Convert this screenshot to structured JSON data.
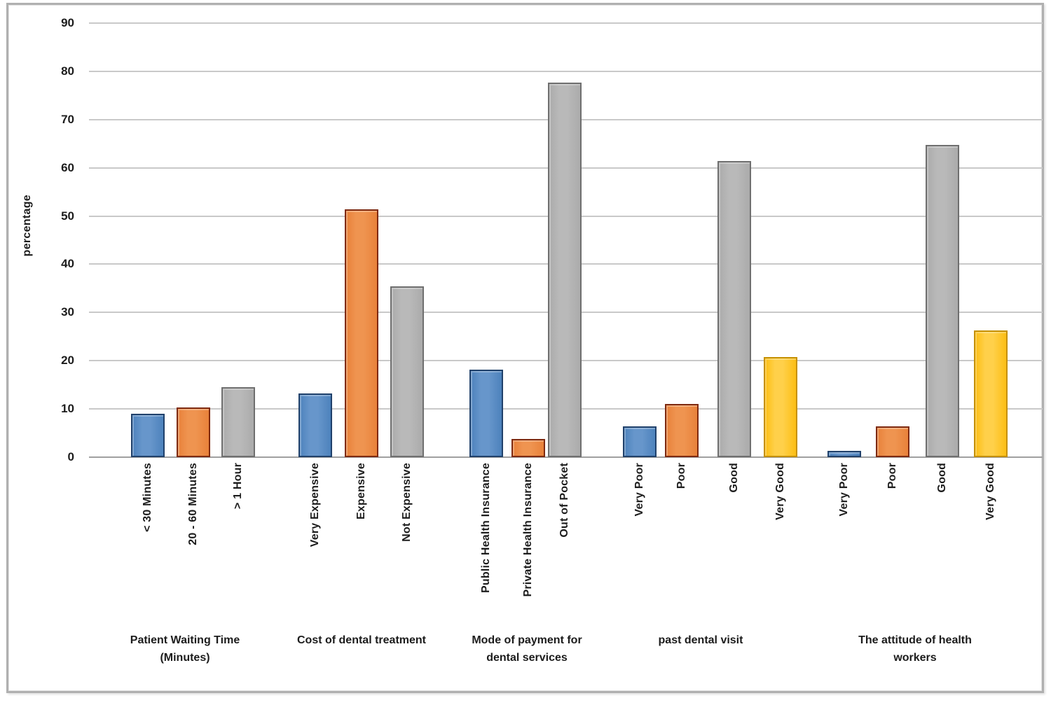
{
  "chart_data": {
    "type": "bar",
    "title": "",
    "ylabel": "percentage",
    "xlabel": "",
    "ylim": [
      0,
      90
    ],
    "ytick_interval": 10,
    "yticks": [
      0,
      10,
      20,
      30,
      40,
      50,
      60,
      70,
      80,
      90
    ],
    "grid": true,
    "legend": "none",
    "groups": [
      {
        "label": "Patient Waiting Time\n(Minutes)",
        "bars": [
          {
            "label": "< 30 Minutes",
            "value": 9.0,
            "color": "blue"
          },
          {
            "label": "20 - 60 Minutes",
            "value": 10.3,
            "color": "orange"
          },
          {
            "label": "> 1 Hour",
            "value": 14.5,
            "color": "gray"
          }
        ]
      },
      {
        "label": "Cost of dental treatment",
        "bars": [
          {
            "label": "Very Expensive",
            "value": 13.2,
            "color": "blue"
          },
          {
            "label": "Expensive",
            "value": 51.4,
            "color": "orange"
          },
          {
            "label": "Not Expensive",
            "value": 35.4,
            "color": "gray"
          }
        ]
      },
      {
        "label": "Mode of payment for\ndental services",
        "bars": [
          {
            "label": "Public Health Insurance",
            "value": 18.2,
            "color": "blue"
          },
          {
            "label": "Private Health Insurance",
            "value": 3.8,
            "color": "orange"
          },
          {
            "label": "Out of Pocket",
            "value": 77.7,
            "color": "gray"
          }
        ]
      },
      {
        "label": "past dental visit",
        "bars": [
          {
            "label": "Very Poor",
            "value": 6.4,
            "color": "blue"
          },
          {
            "label": "Poor",
            "value": 11.0,
            "color": "orange"
          },
          {
            "label": "Good",
            "value": 61.4,
            "color": "gray"
          },
          {
            "label": "Very Good",
            "value": 20.8,
            "color": "yellow"
          }
        ]
      },
      {
        "label": "The attitude of health\nworkers",
        "bars": [
          {
            "label": "Very Poor",
            "value": 1.3,
            "color": "blue"
          },
          {
            "label": "Poor",
            "value": 6.4,
            "color": "orange"
          },
          {
            "label": "Good",
            "value": 64.7,
            "color": "gray"
          },
          {
            "label": "Very Good",
            "value": 26.3,
            "color": "yellow"
          }
        ]
      }
    ],
    "palette": {
      "blue": {
        "fill": "#4d82bc",
        "light": "#6796cb",
        "dark": "#20416b"
      },
      "orange": {
        "fill": "#e8813a",
        "light": "#ef9450",
        "dark": "#7e2a10"
      },
      "gray": {
        "fill": "#ababab",
        "light": "#b9b9b9",
        "dark": "#6f6f6f"
      },
      "yellow": {
        "fill": "#fcbe13",
        "light": "#ffd04a",
        "dark": "#c59000"
      }
    }
  }
}
